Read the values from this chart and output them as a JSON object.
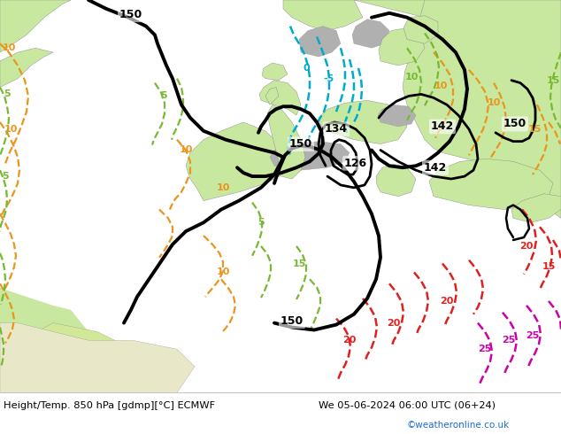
{
  "title_left": "Height/Temp. 850 hPa [gdmp][°C] ECMWF",
  "title_right": "We 05-06-2024 06:00 UTC (06+24)",
  "credit": "©weatheronline.co.uk",
  "text_color": "#000000",
  "credit_color": "#1a6adc",
  "fig_width": 6.34,
  "fig_height": 4.9,
  "dpi": 100,
  "ocean_color": "#dce8f0",
  "land_color": "#c8e8a0",
  "gray_color": "#b0b0b0",
  "bottom_bar_color": "#ffffff",
  "black_contour_color": "#000000",
  "cyan_contour_color": "#00aacc",
  "orange_contour_color": "#e8961e",
  "green_contour_color": "#78b832",
  "red_contour_color": "#dd2020",
  "magenta_contour_color": "#cc00aa"
}
